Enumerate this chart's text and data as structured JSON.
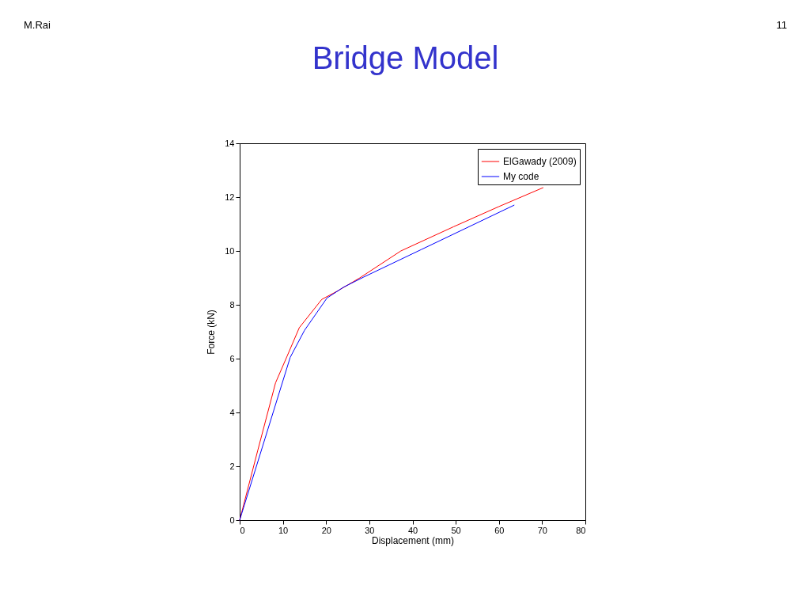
{
  "chart_data": {
    "type": "line",
    "title": "Bridge Model",
    "xlabel": "Displacement (mm)",
    "ylabel": "Force (kN)",
    "annotations": [
      "M.Rai",
      "11"
    ],
    "xlim": [
      0,
      80
    ],
    "ylim": [
      0,
      14
    ],
    "xticks": [
      0,
      10,
      20,
      30,
      40,
      50,
      60,
      70,
      80
    ],
    "yticks": [
      0,
      2,
      4,
      6,
      8,
      10,
      12,
      14
    ],
    "grid": false,
    "legend": "top right",
    "marker": "none",
    "line_style": "solid",
    "series": [
      {
        "name": "ElGawady (2009)",
        "color": "#ff0000",
        "x": [
          0,
          4.2,
          8.3,
          11.0,
          13.8,
          19.0,
          22.5,
          27.8,
          37.3,
          49.5,
          60.0,
          70.2
        ],
        "values": [
          0,
          2.6,
          5.1,
          6.1,
          7.15,
          8.2,
          8.5,
          9.0,
          10.0,
          10.9,
          11.65,
          12.35
        ]
      },
      {
        "name": "My code",
        "color": "#0000ff",
        "x": [
          0,
          5.9,
          11.7,
          15.0,
          20.2,
          24.0,
          28.7,
          42.0,
          63.5
        ],
        "values": [
          0,
          3.05,
          6.05,
          7.05,
          8.25,
          8.65,
          9.03,
          10.05,
          11.7
        ]
      }
    ]
  }
}
